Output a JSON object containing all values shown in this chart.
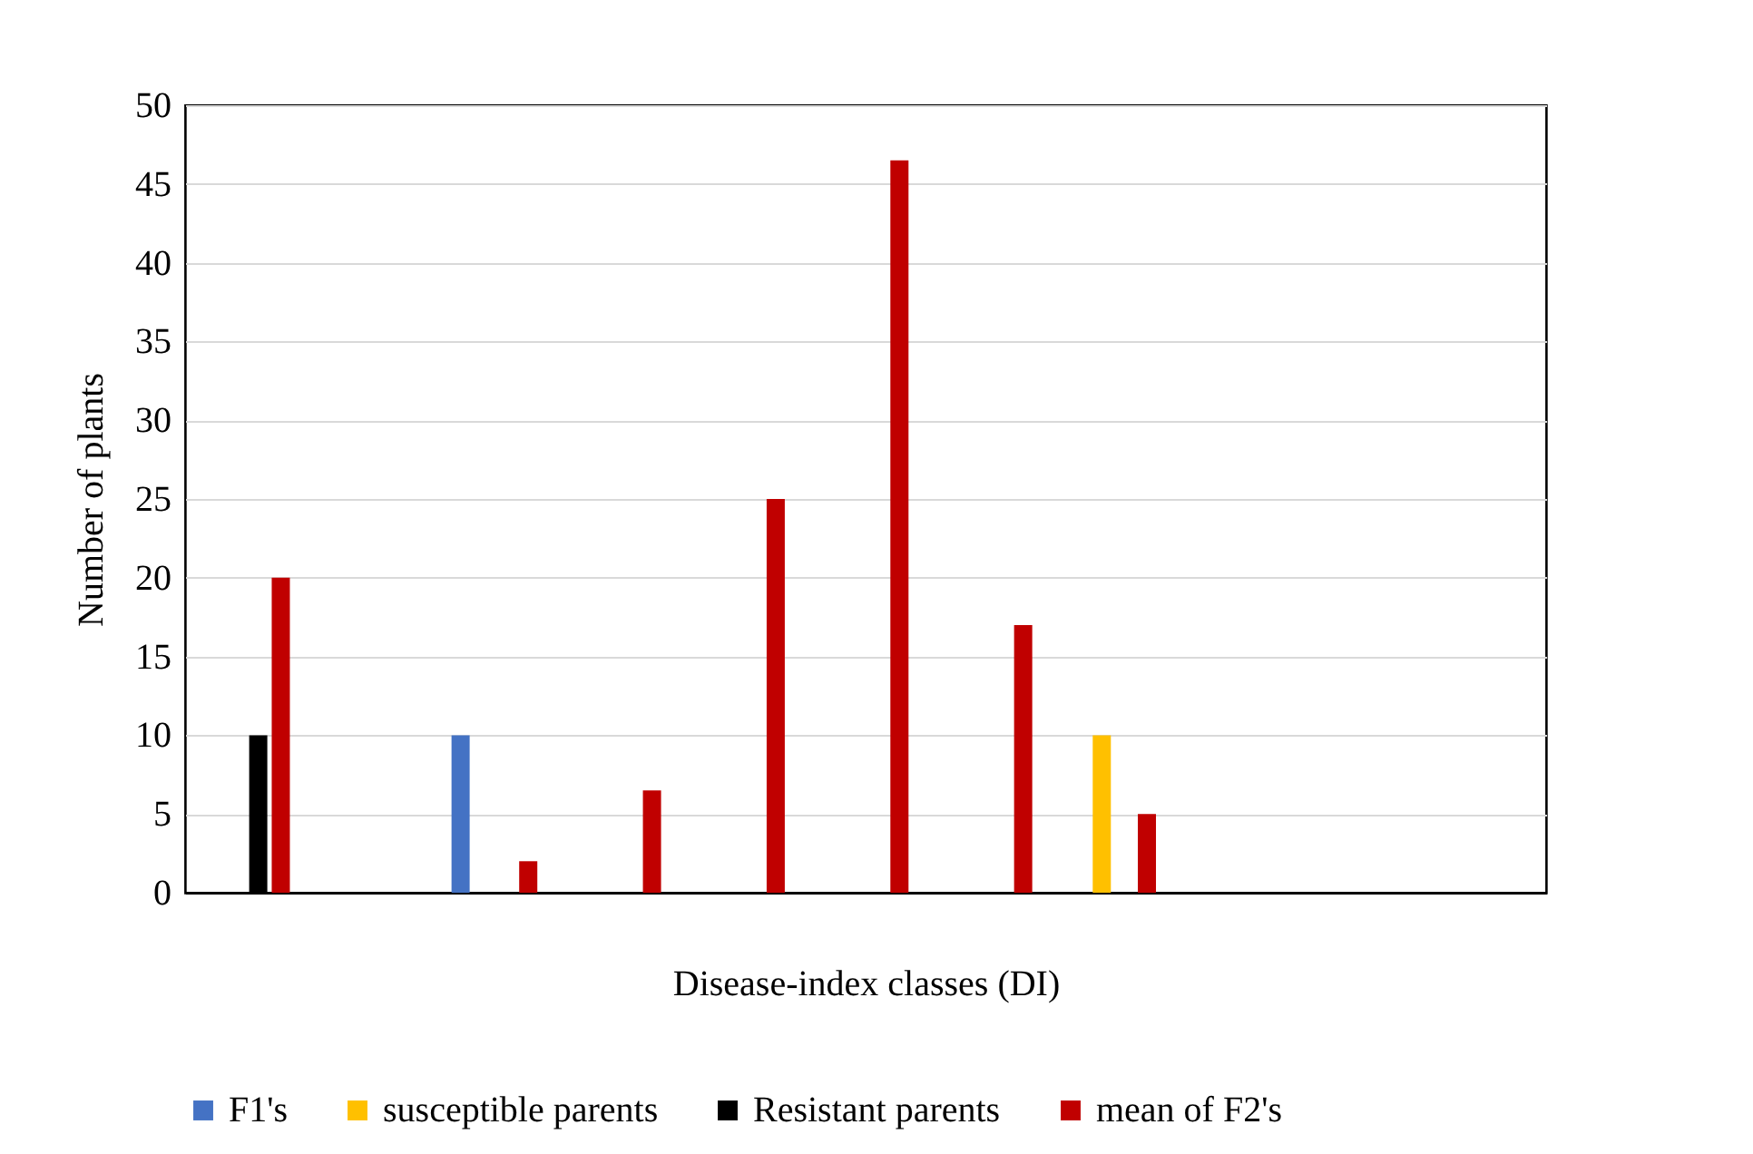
{
  "chart_data": {
    "type": "bar",
    "xlabel": "Disease-index classes (DI)",
    "ylabel": "Number of plants",
    "categories": [
      null,
      null,
      null,
      null,
      null,
      null,
      null,
      null,
      null,
      null,
      null
    ],
    "series": [
      {
        "name": "F1's",
        "color": "#4472c4",
        "values": [
          null,
          null,
          10,
          null,
          null,
          null,
          null,
          null,
          null,
          null,
          null
        ]
      },
      {
        "name": "susceptible parents",
        "color": "#ffc000",
        "values": [
          null,
          null,
          null,
          null,
          null,
          null,
          null,
          10,
          null,
          null,
          null
        ]
      },
      {
        "name": "Resistant parents",
        "color": "#000000",
        "values": [
          10,
          null,
          null,
          null,
          null,
          null,
          null,
          null,
          null,
          null,
          null
        ]
      },
      {
        "name": "mean of F2's",
        "color": "#c00000",
        "values": [
          20,
          null,
          2,
          6.5,
          25,
          46.5,
          17,
          5,
          null,
          null,
          null
        ]
      }
    ],
    "ylim": [
      0,
      50
    ],
    "yticks": [
      0,
      5,
      10,
      15,
      20,
      25,
      30,
      35,
      40,
      45,
      50
    ],
    "grid": "y",
    "legend": "bottom",
    "tick_labels": "y"
  }
}
